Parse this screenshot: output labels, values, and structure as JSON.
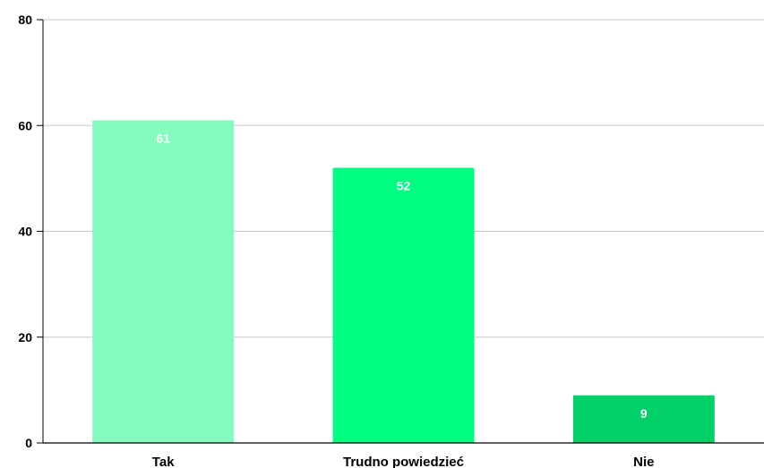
{
  "chart_data": {
    "type": "bar",
    "categories": [
      "Tak",
      "Trudno powiedzieć",
      "Nie"
    ],
    "values": [
      61,
      52,
      9
    ],
    "data_labels": [
      "61",
      "52",
      "9"
    ],
    "colors": [
      "#86fbc0",
      "#00fe80",
      "#00d068"
    ],
    "ylim": [
      0,
      80
    ],
    "yticks": [
      "0",
      "20",
      "40",
      "60",
      "80"
    ],
    "grid": true,
    "legend": "none"
  }
}
